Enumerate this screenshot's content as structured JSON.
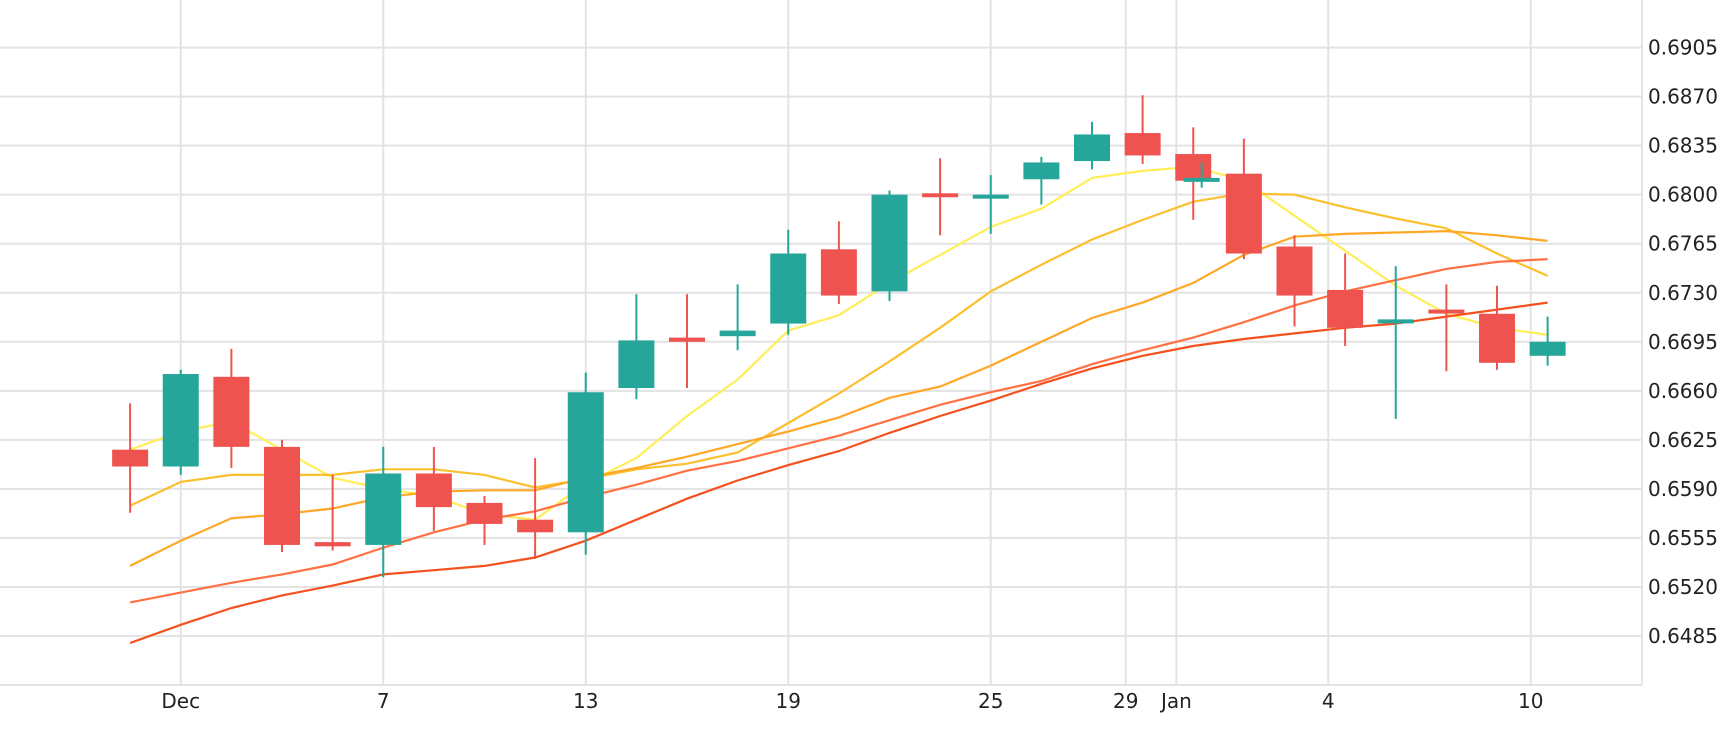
{
  "chart_data": {
    "type": "candlestick",
    "title": "",
    "xlabel": "",
    "ylabel": "",
    "ylim": [
      0.645,
      0.694
    ],
    "y_ticks": [
      "0.6485",
      "0.6520",
      "0.6555",
      "0.6590",
      "0.6625",
      "0.6660",
      "0.6695",
      "0.6730",
      "0.6765",
      "0.6800",
      "0.6835",
      "0.6870",
      "0.6905"
    ],
    "x_ticks": [
      {
        "label": "Dec",
        "day": 1
      },
      {
        "label": "7",
        "day": 7
      },
      {
        "label": "13",
        "day": 13
      },
      {
        "label": "19",
        "day": 19
      },
      {
        "label": "25",
        "day": 25
      },
      {
        "label": "29",
        "day": 29
      },
      {
        "label": "Jan",
        "day": 30.5
      },
      {
        "label": "4",
        "day": 35
      },
      {
        "label": "10",
        "day": 41
      }
    ],
    "up_color": "#26a69a",
    "down_color": "#ef5350",
    "candles": [
      {
        "day": -0.5,
        "o": 0.6618,
        "h": 0.6651,
        "l": 0.6573,
        "c": 0.6606
      },
      {
        "day": 1,
        "o": 0.6606,
        "h": 0.6675,
        "l": 0.66,
        "c": 0.6672
      },
      {
        "day": 2.5,
        "o": 0.667,
        "h": 0.669,
        "l": 0.6605,
        "c": 0.662
      },
      {
        "day": 4,
        "o": 0.662,
        "h": 0.6625,
        "l": 0.6545,
        "c": 0.655
      },
      {
        "day": 5.5,
        "o": 0.6552,
        "h": 0.66,
        "l": 0.6546,
        "c": 0.6549
      },
      {
        "day": 7,
        "o": 0.655,
        "h": 0.662,
        "l": 0.6527,
        "c": 0.6601
      },
      {
        "day": 8.5,
        "o": 0.6601,
        "h": 0.662,
        "l": 0.656,
        "c": 0.6577
      },
      {
        "day": 10,
        "o": 0.658,
        "h": 0.6585,
        "l": 0.655,
        "c": 0.6565
      },
      {
        "day": 11.5,
        "o": 0.6568,
        "h": 0.6612,
        "l": 0.654,
        "c": 0.6559
      },
      {
        "day": 13,
        "o": 0.6559,
        "h": 0.6673,
        "l": 0.6543,
        "c": 0.6659
      },
      {
        "day": 14.5,
        "o": 0.6662,
        "h": 0.6729,
        "l": 0.6654,
        "c": 0.6696
      },
      {
        "day": 16,
        "o": 0.6698,
        "h": 0.6729,
        "l": 0.6662,
        "c": 0.6695
      },
      {
        "day": 17.5,
        "o": 0.6699,
        "h": 0.6736,
        "l": 0.6689,
        "c": 0.6703
      },
      {
        "day": 19,
        "o": 0.6708,
        "h": 0.6775,
        "l": 0.67,
        "c": 0.6758
      },
      {
        "day": 20.5,
        "o": 0.6761,
        "h": 0.6781,
        "l": 0.6722,
        "c": 0.6728
      },
      {
        "day": 22,
        "o": 0.6731,
        "h": 0.6803,
        "l": 0.6724,
        "c": 0.68
      },
      {
        "day": 23.5,
        "o": 0.6801,
        "h": 0.6826,
        "l": 0.6771,
        "c": 0.6799
      },
      {
        "day": 25,
        "o": 0.68,
        "h": 0.6814,
        "l": 0.6772,
        "c": 0.68
      },
      {
        "day": 26.5,
        "o": 0.6811,
        "h": 0.6827,
        "l": 0.6793,
        "c": 0.6823
      },
      {
        "day": 28,
        "o": 0.6824,
        "h": 0.6852,
        "l": 0.6818,
        "c": 0.6843
      },
      {
        "day": 29.5,
        "o": 0.6844,
        "h": 0.6871,
        "l": 0.6822,
        "c": 0.6828
      },
      {
        "day": 31,
        "o": 0.6829,
        "h": 0.6848,
        "l": 0.6782,
        "c": 0.681
      },
      {
        "day": 31.25,
        "o": 0.681,
        "h": 0.6823,
        "l": 0.6805,
        "c": 0.6812
      },
      {
        "day": 32.5,
        "o": 0.6815,
        "h": 0.684,
        "l": 0.6754,
        "c": 0.6758
      },
      {
        "day": 34,
        "o": 0.6763,
        "h": 0.6771,
        "l": 0.6706,
        "c": 0.6728
      },
      {
        "day": 35.5,
        "o": 0.6732,
        "h": 0.6758,
        "l": 0.6692,
        "c": 0.6705
      },
      {
        "day": 37,
        "o": 0.671,
        "h": 0.6749,
        "l": 0.664,
        "c": 0.6711
      },
      {
        "day": 38.5,
        "o": 0.6718,
        "h": 0.6736,
        "l": 0.6674,
        "c": 0.6717
      },
      {
        "day": 40,
        "o": 0.6715,
        "h": 0.6735,
        "l": 0.6675,
        "c": 0.668
      },
      {
        "day": 41.5,
        "o": 0.6685,
        "h": 0.6713,
        "l": 0.6678,
        "c": 0.6695
      }
    ],
    "moving_averages": [
      {
        "color": "#ffee58",
        "points": [
          [
            -0.5,
            0.6618
          ],
          [
            1,
            0.6631
          ],
          [
            2.5,
            0.6638
          ],
          [
            4,
            0.6618
          ],
          [
            5.5,
            0.6598
          ],
          [
            7,
            0.659
          ],
          [
            8.5,
            0.6585
          ],
          [
            10,
            0.6572
          ],
          [
            11.5,
            0.6568
          ],
          [
            13,
            0.6594
          ],
          [
            14.5,
            0.6612
          ],
          [
            16,
            0.6642
          ],
          [
            17.5,
            0.6668
          ],
          [
            19,
            0.6703
          ],
          [
            20.5,
            0.6714
          ],
          [
            22,
            0.6737
          ],
          [
            23.5,
            0.6757
          ],
          [
            25,
            0.6777
          ],
          [
            26.5,
            0.679
          ],
          [
            28,
            0.6812
          ],
          [
            29.5,
            0.6817
          ],
          [
            31,
            0.682
          ],
          [
            32.5,
            0.681
          ],
          [
            34,
            0.6785
          ],
          [
            35.5,
            0.676
          ],
          [
            37,
            0.6735
          ],
          [
            38.5,
            0.6715
          ],
          [
            40,
            0.6705
          ],
          [
            41.5,
            0.67
          ]
        ]
      },
      {
        "color": "#fbc02d",
        "points": [
          [
            -0.5,
            0.6578
          ],
          [
            1,
            0.6595
          ],
          [
            2.5,
            0.66
          ],
          [
            4,
            0.66
          ],
          [
            5.5,
            0.66
          ],
          [
            7,
            0.6604
          ],
          [
            8.5,
            0.6604
          ],
          [
            10,
            0.66
          ],
          [
            11.5,
            0.6591
          ],
          [
            13,
            0.6597
          ],
          [
            14.5,
            0.6604
          ],
          [
            16,
            0.6608
          ],
          [
            17.5,
            0.6616
          ],
          [
            19,
            0.6637
          ],
          [
            20.5,
            0.6658
          ],
          [
            22,
            0.6681
          ],
          [
            23.5,
            0.6705
          ],
          [
            25,
            0.6731
          ],
          [
            26.5,
            0.675
          ],
          [
            28,
            0.6768
          ],
          [
            29.5,
            0.6782
          ],
          [
            31,
            0.6795
          ],
          [
            32.5,
            0.6801
          ],
          [
            34,
            0.68
          ],
          [
            35.5,
            0.6791
          ],
          [
            37,
            0.6783
          ],
          [
            38.5,
            0.6776
          ],
          [
            40,
            0.6758
          ],
          [
            41.5,
            0.6742
          ]
        ]
      },
      {
        "color": "#ffa726",
        "points": [
          [
            -0.5,
            0.6535
          ],
          [
            1,
            0.6553
          ],
          [
            2.5,
            0.6569
          ],
          [
            4,
            0.6572
          ],
          [
            5.5,
            0.6576
          ],
          [
            7,
            0.6584
          ],
          [
            8.5,
            0.6588
          ],
          [
            10,
            0.6589
          ],
          [
            11.5,
            0.6589
          ],
          [
            13,
            0.6598
          ],
          [
            14.5,
            0.6605
          ],
          [
            16,
            0.6613
          ],
          [
            17.5,
            0.6622
          ],
          [
            19,
            0.6631
          ],
          [
            20.5,
            0.6641
          ],
          [
            22,
            0.6655
          ],
          [
            23.5,
            0.6663
          ],
          [
            25,
            0.6678
          ],
          [
            26.5,
            0.6695
          ],
          [
            28,
            0.6712
          ],
          [
            29.5,
            0.6723
          ],
          [
            31,
            0.6737
          ],
          [
            32.5,
            0.6757
          ],
          [
            34,
            0.677
          ],
          [
            35.5,
            0.6772
          ],
          [
            37,
            0.6773
          ],
          [
            38.5,
            0.6774
          ],
          [
            40,
            0.6771
          ],
          [
            41.5,
            0.6767
          ]
        ]
      },
      {
        "color": "#ff7043",
        "points": [
          [
            -0.5,
            0.6509
          ],
          [
            1,
            0.6516
          ],
          [
            2.5,
            0.6523
          ],
          [
            4,
            0.6529
          ],
          [
            5.5,
            0.6536
          ],
          [
            7,
            0.6548
          ],
          [
            8.5,
            0.6559
          ],
          [
            10,
            0.6568
          ],
          [
            11.5,
            0.6574
          ],
          [
            13,
            0.6584
          ],
          [
            14.5,
            0.6593
          ],
          [
            16,
            0.6603
          ],
          [
            17.5,
            0.661
          ],
          [
            19,
            0.6619
          ],
          [
            20.5,
            0.6628
          ],
          [
            22,
            0.6639
          ],
          [
            23.5,
            0.665
          ],
          [
            25,
            0.6659
          ],
          [
            26.5,
            0.6667
          ],
          [
            28,
            0.6679
          ],
          [
            29.5,
            0.6689
          ],
          [
            31,
            0.6698
          ],
          [
            32.5,
            0.6709
          ],
          [
            34,
            0.6721
          ],
          [
            35.5,
            0.6731
          ],
          [
            37,
            0.6739
          ],
          [
            38.5,
            0.6747
          ],
          [
            40,
            0.6752
          ],
          [
            41.5,
            0.6754
          ]
        ]
      },
      {
        "color": "#f4511e",
        "points": [
          [
            -0.5,
            0.648
          ],
          [
            1,
            0.6493
          ],
          [
            2.5,
            0.6505
          ],
          [
            4,
            0.6514
          ],
          [
            5.5,
            0.6521
          ],
          [
            7,
            0.6529
          ],
          [
            8.5,
            0.6532
          ],
          [
            10,
            0.6535
          ],
          [
            11.5,
            0.6541
          ],
          [
            13,
            0.6553
          ],
          [
            14.5,
            0.6568
          ],
          [
            16,
            0.6583
          ],
          [
            17.5,
            0.6596
          ],
          [
            19,
            0.6607
          ],
          [
            20.5,
            0.6617
          ],
          [
            22,
            0.663
          ],
          [
            23.5,
            0.6642
          ],
          [
            25,
            0.6653
          ],
          [
            26.5,
            0.6665
          ],
          [
            28,
            0.6676
          ],
          [
            29.5,
            0.6685
          ],
          [
            31,
            0.6692
          ],
          [
            32.5,
            0.6697
          ],
          [
            34,
            0.6701
          ],
          [
            35.5,
            0.6705
          ],
          [
            37,
            0.6708
          ],
          [
            38.5,
            0.6713
          ],
          [
            40,
            0.6718
          ],
          [
            41.5,
            0.6723
          ]
        ]
      }
    ]
  }
}
